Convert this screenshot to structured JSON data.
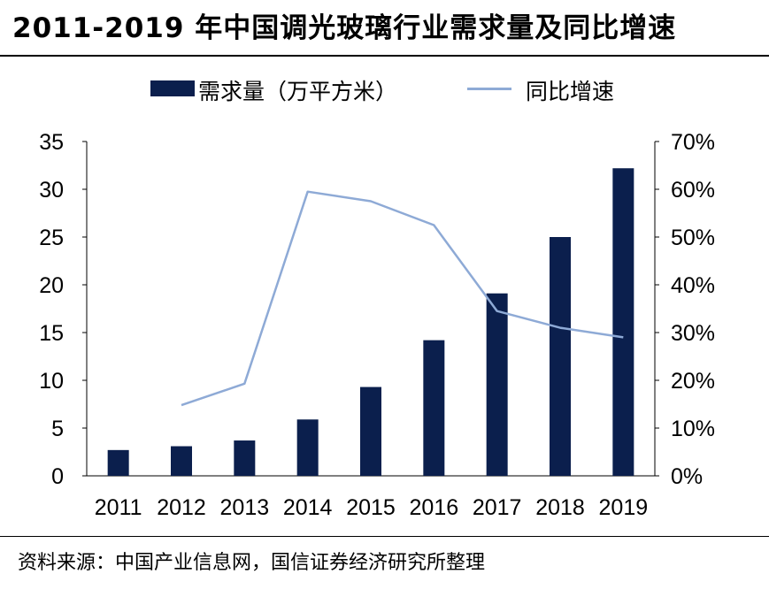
{
  "title": "2011-2019 年中国调光玻璃行业需求量及同比增速",
  "source": "资料来源：中国产业信息网，国信证券经济研究所整理",
  "colors": {
    "bar": "#0b1f4d",
    "line": "#8eaad6",
    "axis": "#000000"
  },
  "chart_data": {
    "type": "bar",
    "categories": [
      "2011",
      "2012",
      "2013",
      "2014",
      "2015",
      "2016",
      "2017",
      "2018",
      "2019"
    ],
    "series": [
      {
        "name": "需求量（万平方米）",
        "type": "bar",
        "axis": "left",
        "values": [
          2.7,
          3.1,
          3.7,
          5.9,
          9.3,
          14.2,
          19.1,
          25.0,
          32.2
        ]
      },
      {
        "name": "同比增速",
        "type": "line",
        "axis": "right",
        "values": [
          null,
          0.148,
          0.193,
          0.595,
          0.575,
          0.525,
          0.345,
          0.31,
          0.29
        ]
      }
    ],
    "y_left": {
      "lim": [
        0,
        35
      ],
      "ticks": [
        "0",
        "5",
        "10",
        "15",
        "20",
        "25",
        "30",
        "35"
      ]
    },
    "y_right": {
      "lim": [
        0,
        0.7
      ],
      "ticks": [
        "0%",
        "10%",
        "20%",
        "30%",
        "40%",
        "50%",
        "60%",
        "70%"
      ]
    },
    "legend": "top",
    "grid": false
  }
}
